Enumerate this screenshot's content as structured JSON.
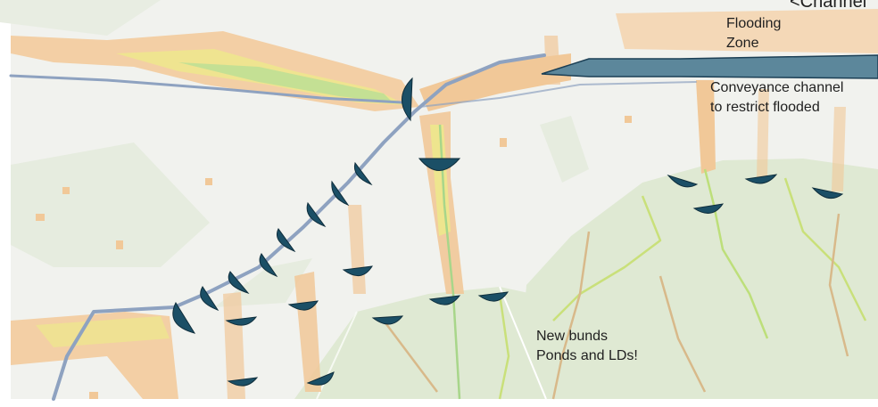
{
  "map": {
    "annotations": {
      "flooding_zone": [
        "Flooding",
        "Zone"
      ],
      "conveyance_channel": [
        "Conveyance channel",
        "to restrict flooded"
      ],
      "new_bunds": [
        "New bunds",
        "Ponds and LDs!"
      ],
      "cut_off_top_right": "<Channel"
    },
    "colors": {
      "background": "#f1f2ee",
      "hill_green": "#e2ead8",
      "flood_peach": "#f1c898",
      "flood_yellow": "#eee58e",
      "flood_green": "#aad88a",
      "river_blue": "#8ea2c0",
      "bund_marker": "#1b4f66",
      "channel_fill": "#5c879b"
    },
    "icons": [
      "bund-marker-icon"
    ]
  }
}
